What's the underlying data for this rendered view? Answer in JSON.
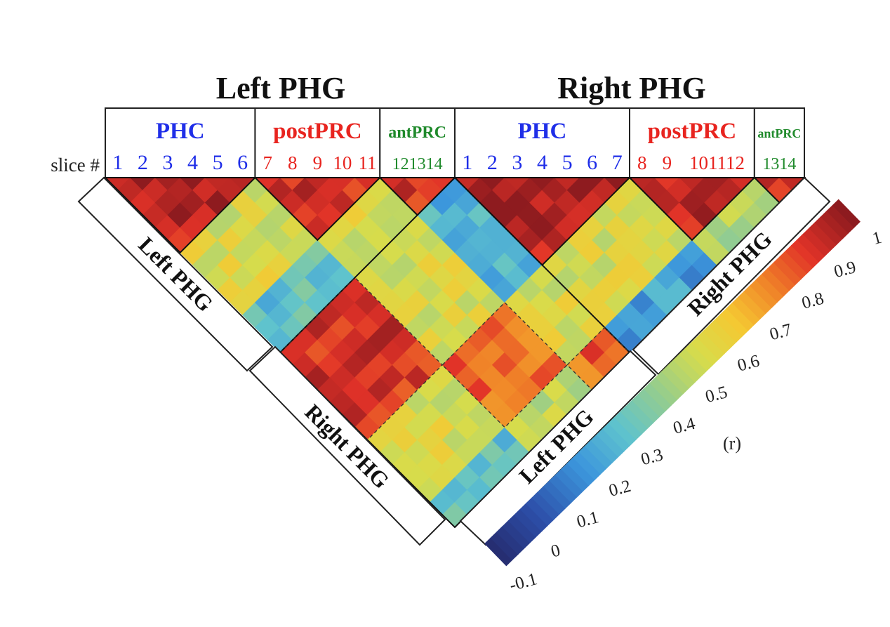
{
  "chart_data": {
    "type": "heatmap",
    "variant": "lower-triangular correlation matrix rotated 45 degrees",
    "top_labels": {
      "left_hemisphere": "Left PHG",
      "right_hemisphere": "Right PHG"
    },
    "slice_label": "slice #",
    "regions": [
      {
        "hemisphere": "Left PHG",
        "name": "PHC",
        "color": "#1f2ee8",
        "slices": [
          "1",
          "2",
          "3",
          "4",
          "5",
          "6"
        ]
      },
      {
        "hemisphere": "Left PHG",
        "name": "postPRC",
        "color": "#e8241f",
        "slices": [
          "7",
          "8",
          "9",
          "10",
          "11"
        ]
      },
      {
        "hemisphere": "Left PHG",
        "name": "antPRC",
        "color": "#1f8a2b",
        "slices": [
          "12",
          "13",
          "14"
        ],
        "slice_text": "121314"
      },
      {
        "hemisphere": "Right PHG",
        "name": "PHC",
        "color": "#1f2ee8",
        "slices": [
          "1",
          "2",
          "3",
          "4",
          "5",
          "6",
          "7"
        ]
      },
      {
        "hemisphere": "Right PHG",
        "name": "postPRC",
        "color": "#e8241f",
        "slices": [
          "8",
          "9",
          "10",
          "11",
          "12"
        ],
        "slice_text": [
          "8",
          "9",
          "101112"
        ]
      },
      {
        "hemisphere": "Right PHG",
        "name": "antPRC",
        "color": "#1f8a2b",
        "slices": [
          "13",
          "14"
        ],
        "slice_text": "1314"
      }
    ],
    "side_labels": {
      "left_outer": "Left PHG",
      "left_inner": "Right PHG",
      "right_outer": "Right PHG",
      "right_inner": "Left PHG"
    },
    "colorbar": {
      "label": "(r)",
      "min": -0.1,
      "max": 1,
      "ticks": [
        "-0.1",
        "0",
        "0.1",
        "0.2",
        "0.3",
        "0.4",
        "0.5",
        "0.6",
        "0.7",
        "0.8",
        "0.9",
        "1"
      ],
      "tick_values": [
        -0.1,
        0,
        0.1,
        0.2,
        0.3,
        0.4,
        0.5,
        0.6,
        0.7,
        0.8,
        0.9,
        1
      ],
      "colormap": "jet-like (dark blue to dark red)"
    },
    "block_mean_r": {
      "order": [
        "L-PHC",
        "L-postPRC",
        "L-antPRC",
        "R-PHC",
        "R-postPRC",
        "R-antPRC"
      ],
      "matrix": [
        [
          0.92,
          0.55,
          0.3,
          0.88,
          0.55,
          0.3
        ],
        [
          0.55,
          0.85,
          0.55,
          0.55,
          0.8,
          0.5
        ],
        [
          0.3,
          0.55,
          0.85,
          0.25,
          0.55,
          0.8
        ],
        [
          0.88,
          0.55,
          0.25,
          0.92,
          0.55,
          0.2
        ],
        [
          0.55,
          0.8,
          0.55,
          0.55,
          0.88,
          0.45
        ],
        [
          0.3,
          0.5,
          0.8,
          0.2,
          0.45,
          0.85
        ]
      ]
    },
    "grid": false,
    "legend": "colorbar, bottom-right"
  }
}
